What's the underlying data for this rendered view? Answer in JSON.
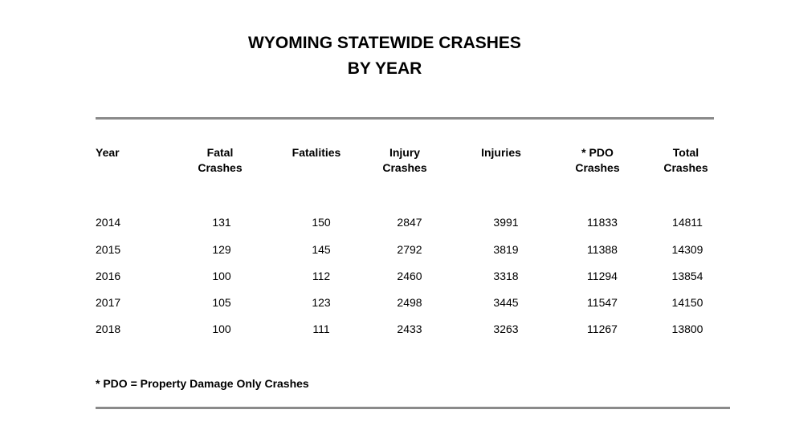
{
  "title": {
    "line1": "WYOMING STATEWIDE CRASHES",
    "line2": "BY YEAR"
  },
  "table": {
    "headers": [
      {
        "line1": "Year",
        "line2": ""
      },
      {
        "line1": "Fatal",
        "line2": "Crashes"
      },
      {
        "line1": "Fatalities",
        "line2": ""
      },
      {
        "line1": "Injury",
        "line2": "Crashes"
      },
      {
        "line1": "Injuries",
        "line2": ""
      },
      {
        "line1": "* PDO",
        "line2": "Crashes"
      },
      {
        "line1": "Total",
        "line2": "Crashes"
      }
    ],
    "rows": [
      [
        "2014",
        "131",
        "150",
        "2847",
        "3991",
        "11833",
        "14811"
      ],
      [
        "2015",
        "129",
        "145",
        "2792",
        "3819",
        "11388",
        "14309"
      ],
      [
        "2016",
        "100",
        "112",
        "2460",
        "3318",
        "11294",
        "13854"
      ],
      [
        "2017",
        "105",
        "123",
        "2498",
        "3445",
        "11547",
        "14150"
      ],
      [
        "2018",
        "100",
        "111",
        "2433",
        "3263",
        "11267",
        "13800"
      ]
    ]
  },
  "footnote": "* PDO = Property Damage Only Crashes"
}
